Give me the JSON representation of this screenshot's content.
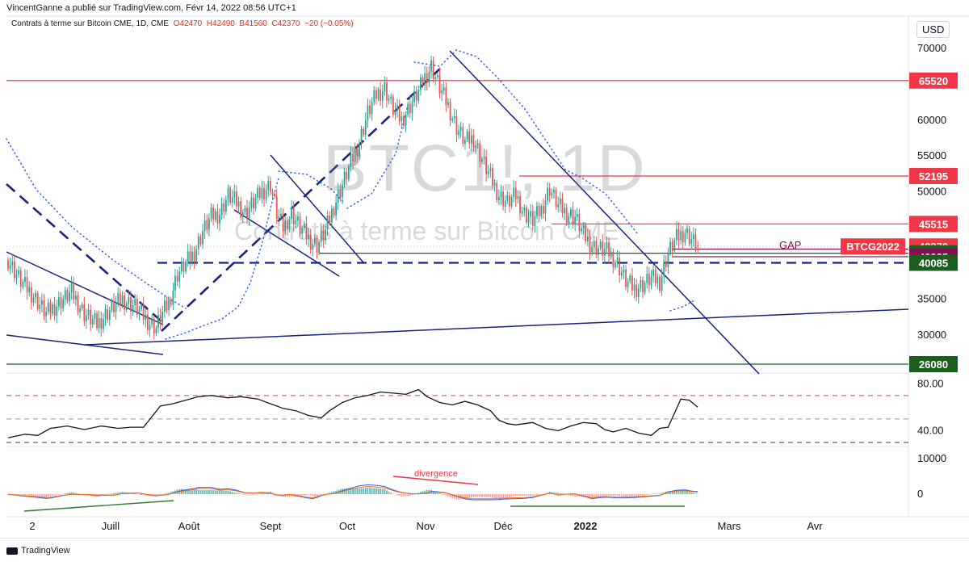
{
  "publisher_line": "VincentGanne a publié sur TradingView.com, Févr 14, 2022 08:56 UTC+1",
  "header": {
    "symbol": "Contrats à terme sur Bitcoin CME, 1D, CME",
    "O": "42470",
    "H": "42490",
    "B": "41560",
    "C": "42370",
    "change": "−20 (−0.05%)"
  },
  "watermark": {
    "symbol": "BTC1!, 1D",
    "name": "Contrats à terme sur Bitcoin CME"
  },
  "footer": {
    "brand": "TradingView"
  },
  "colors": {
    "red": "#f23645",
    "green": "#1b5e20",
    "blue": "#1a237e",
    "maroon": "#880e4f",
    "candle_up": "#26a69a",
    "candle_down": "#ef5350"
  },
  "chart_data": [
    {
      "type": "candlestick",
      "title": "Contrats à terme sur Bitcoin CME, 1D",
      "currency": "USD",
      "x_ticks": [
        "2",
        "Juill",
        "Août",
        "Sept",
        "Oct",
        "Nov",
        "Déc",
        "2022",
        "Mars",
        "Avr"
      ],
      "y_ticks": [
        30000,
        35000,
        40000,
        45000,
        50000,
        55000,
        60000,
        65000,
        70000
      ],
      "ylim": [
        26000,
        71000
      ],
      "close_approx": [
        [
          0,
          40500
        ],
        [
          6,
          37500
        ],
        [
          12,
          35500
        ],
        [
          18,
          33000
        ],
        [
          24,
          34500
        ],
        [
          30,
          36000
        ],
        [
          36,
          33000
        ],
        [
          42,
          31500
        ],
        [
          48,
          33500
        ],
        [
          54,
          35000
        ],
        [
          60,
          34000
        ],
        [
          66,
          32000
        ],
        [
          70,
          31000
        ],
        [
          72,
          32500
        ],
        [
          76,
          34500
        ],
        [
          80,
          38500
        ],
        [
          84,
          40000
        ],
        [
          88,
          41500
        ],
        [
          92,
          44500
        ],
        [
          96,
          46500
        ],
        [
          100,
          47000
        ],
        [
          104,
          49500
        ],
        [
          108,
          48500
        ],
        [
          112,
          47000
        ],
        [
          116,
          48500
        ],
        [
          120,
          50000
        ],
        [
          124,
          51000
        ],
        [
          127,
          47000
        ],
        [
          130,
          45000
        ],
        [
          134,
          47000
        ],
        [
          138,
          45000
        ],
        [
          142,
          43500
        ],
        [
          146,
          42500
        ],
        [
          150,
          44500
        ],
        [
          154,
          48000
        ],
        [
          158,
          51000
        ],
        [
          162,
          54000
        ],
        [
          166,
          57000
        ],
        [
          170,
          61000
        ],
        [
          174,
          63500
        ],
        [
          178,
          64500
        ],
        [
          182,
          61500
        ],
        [
          186,
          60000
        ],
        [
          190,
          62000
        ],
        [
          194,
          64000
        ],
        [
          197,
          66000
        ],
        [
          200,
          67500
        ],
        [
          204,
          64500
        ],
        [
          208,
          62000
        ],
        [
          212,
          59000
        ],
        [
          216,
          57000
        ],
        [
          220,
          57500
        ],
        [
          224,
          54500
        ],
        [
          228,
          52000
        ],
        [
          232,
          49500
        ],
        [
          236,
          48500
        ],
        [
          240,
          49500
        ],
        [
          244,
          47000
        ],
        [
          248,
          46000
        ],
        [
          252,
          47500
        ],
        [
          256,
          50500
        ],
        [
          260,
          48000
        ],
        [
          264,
          47000
        ],
        [
          268,
          46500
        ],
        [
          272,
          44000
        ],
        [
          276,
          42500
        ],
        [
          280,
          42000
        ],
        [
          284,
          41500
        ],
        [
          288,
          40000
        ],
        [
          292,
          37500
        ],
        [
          296,
          36500
        ],
        [
          300,
          37000
        ],
        [
          304,
          38000
        ],
        [
          308,
          37500
        ],
        [
          312,
          41500
        ],
        [
          316,
          43500
        ],
        [
          320,
          44500
        ],
        [
          324,
          43000
        ],
        [
          326,
          42370
        ]
      ],
      "levels": [
        {
          "label": "65520",
          "value": 65520,
          "color": "#f23645"
        },
        {
          "label": "52195",
          "value": 52195,
          "color": "#f23645"
        },
        {
          "label": "45515",
          "value": 45515,
          "color": "#f23645"
        },
        {
          "label": "42370",
          "value": 42370,
          "color": "#f23645"
        },
        {
          "label": "41420",
          "value": 41420,
          "color": "#1b5e20"
        },
        {
          "label": "40935",
          "value": 40935,
          "color": "#880e4f"
        },
        {
          "label": "40085",
          "value": 40085,
          "color": "#1b5e20"
        },
        {
          "label": "26080",
          "value": 26080,
          "color": "#1b5e20"
        }
      ],
      "tags": [
        {
          "label": "BTCG2022",
          "color": "#f23645"
        }
      ],
      "annotations": [
        {
          "text": "GAP",
          "color": "#880e4f"
        }
      ]
    },
    {
      "type": "line",
      "name": "rsi",
      "y_ticks": [
        40.0,
        80.0
      ],
      "ylim": [
        30,
        85
      ],
      "levels": [
        70,
        50,
        30
      ],
      "values": [
        [
          0,
          34
        ],
        [
          8,
          37
        ],
        [
          14,
          36
        ],
        [
          20,
          42
        ],
        [
          28,
          44
        ],
        [
          36,
          41
        ],
        [
          44,
          44
        ],
        [
          52,
          42
        ],
        [
          58,
          43
        ],
        [
          64,
          43
        ],
        [
          72,
          61
        ],
        [
          78,
          63
        ],
        [
          84,
          66
        ],
        [
          90,
          69
        ],
        [
          96,
          70
        ],
        [
          104,
          68
        ],
        [
          110,
          69
        ],
        [
          118,
          67
        ],
        [
          124,
          63
        ],
        [
          130,
          59
        ],
        [
          136,
          57
        ],
        [
          142,
          53
        ],
        [
          148,
          51
        ],
        [
          152,
          57
        ],
        [
          158,
          64
        ],
        [
          164,
          68
        ],
        [
          170,
          70
        ],
        [
          176,
          73
        ],
        [
          182,
          72
        ],
        [
          188,
          71
        ],
        [
          194,
          75
        ],
        [
          198,
          69
        ],
        [
          204,
          64
        ],
        [
          210,
          62
        ],
        [
          216,
          65
        ],
        [
          222,
          62
        ],
        [
          228,
          57
        ],
        [
          232,
          49
        ],
        [
          236,
          46
        ],
        [
          240,
          45
        ],
        [
          248,
          47
        ],
        [
          254,
          42
        ],
        [
          260,
          40
        ],
        [
          266,
          44
        ],
        [
          272,
          47
        ],
        [
          278,
          46
        ],
        [
          282,
          41
        ],
        [
          286,
          39
        ],
        [
          292,
          42
        ],
        [
          298,
          38
        ],
        [
          304,
          36
        ],
        [
          308,
          42
        ],
        [
          312,
          43
        ],
        [
          318,
          67
        ],
        [
          322,
          66
        ],
        [
          326,
          60
        ]
      ]
    },
    {
      "type": "histogram",
      "name": "macd",
      "y_ticks": [
        0,
        10000
      ],
      "annotations": [
        {
          "text": "divergence",
          "color": "#f23645"
        }
      ]
    }
  ]
}
